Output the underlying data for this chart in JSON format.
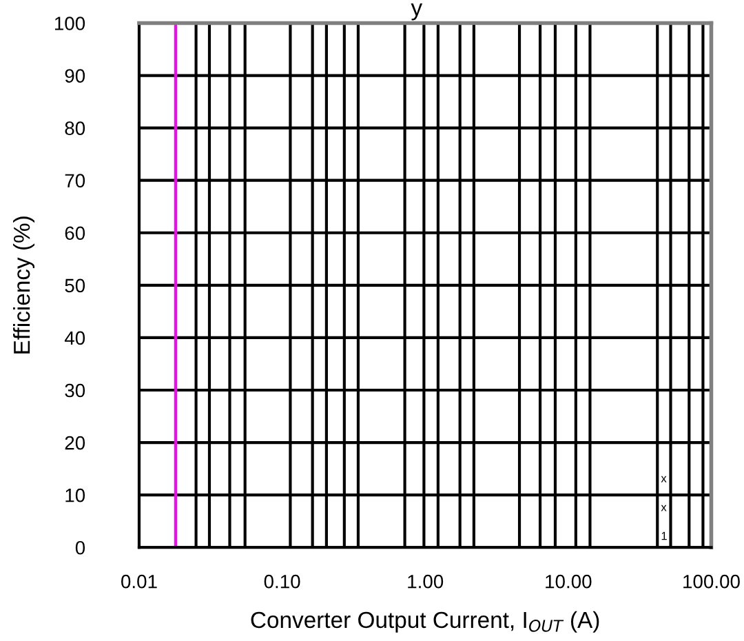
{
  "chart_data": {
    "type": "line",
    "title": "y",
    "xlabel": "Converter Output Current, I$_{OUT}$ (A)",
    "ylabel": "Efficiency (%)",
    "log": "x",
    "xlim": [
      0.01,
      100
    ],
    "ylim": [
      0,
      100
    ],
    "xticks": [
      {
        "value": 0.01,
        "label": "0.01"
      },
      {
        "value": 0.1,
        "label": "0.10"
      },
      {
        "value": 1,
        "label": "1.00"
      },
      {
        "value": 10,
        "label": "10.00"
      },
      {
        "value": 100,
        "label": "100.00"
      }
    ],
    "yticks": [
      0,
      10,
      20,
      30,
      40,
      50,
      60,
      70,
      80,
      90,
      100
    ],
    "grid": "y",
    "legend": false,
    "ref_lines": [
      {
        "axis": "x",
        "value": 0.018,
        "color": "#ff00ff"
      },
      {
        "axis": "x",
        "value": 0.025,
        "color": "#000000"
      },
      {
        "axis": "x",
        "value": 0.031,
        "color": "#000000"
      },
      {
        "axis": "x",
        "value": 0.043,
        "color": "#000000"
      },
      {
        "axis": "x",
        "value": 0.055,
        "color": "#000000"
      },
      {
        "axis": "x",
        "value": 0.114,
        "color": "#000000"
      },
      {
        "axis": "x",
        "value": 0.163,
        "color": "#000000"
      },
      {
        "axis": "x",
        "value": 0.204,
        "color": "#000000"
      },
      {
        "axis": "x",
        "value": 0.272,
        "color": "#000000"
      },
      {
        "axis": "x",
        "value": 0.34,
        "color": "#000000"
      },
      {
        "axis": "x",
        "value": 0.72,
        "color": "#000000"
      },
      {
        "axis": "x",
        "value": 0.98,
        "color": "#000000"
      },
      {
        "axis": "x",
        "value": 1.23,
        "color": "#000000"
      },
      {
        "axis": "x",
        "value": 1.75,
        "color": "#000000"
      },
      {
        "axis": "x",
        "value": 2.19,
        "color": "#000000"
      },
      {
        "axis": "x",
        "value": 4.56,
        "color": "#000000"
      },
      {
        "axis": "x",
        "value": 6.36,
        "color": "#000000"
      },
      {
        "axis": "x",
        "value": 8.11,
        "color": "#000000"
      },
      {
        "axis": "x",
        "value": 11.3,
        "color": "#000000"
      },
      {
        "axis": "x",
        "value": 14.2,
        "color": "#000000"
      },
      {
        "axis": "x",
        "value": 42,
        "color": "#000000"
      },
      {
        "axis": "x",
        "value": 52,
        "color": "#000000"
      },
      {
        "axis": "x",
        "value": 70,
        "color": "#000000"
      },
      {
        "axis": "x",
        "value": 87.5,
        "color": "#000000"
      }
    ],
    "annotations": [
      "x",
      "x",
      "1"
    ]
  }
}
